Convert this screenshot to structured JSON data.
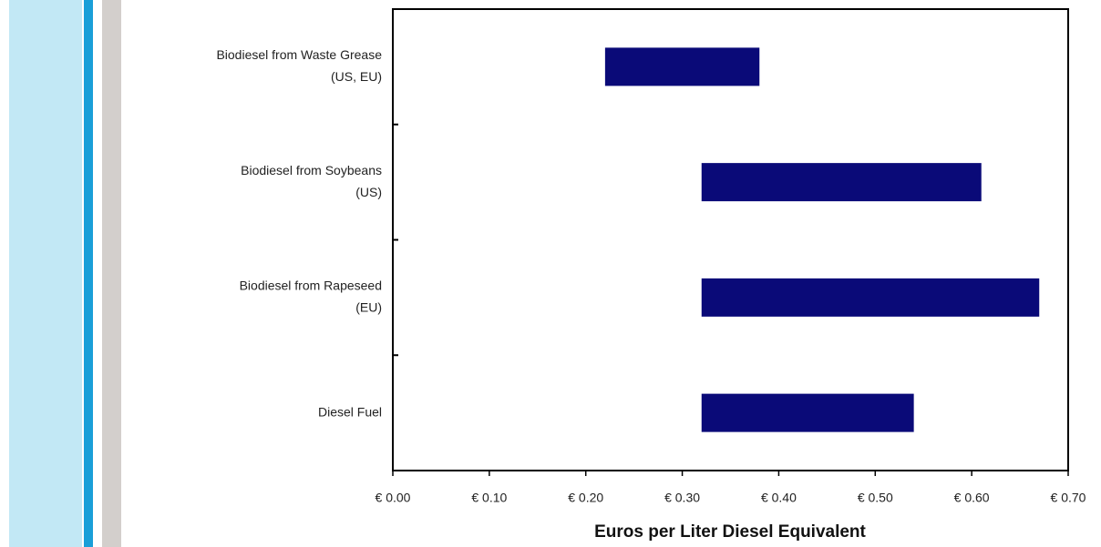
{
  "chart_data": {
    "type": "range_bar",
    "x_label": "Euros per Liter Diesel Equivalent",
    "categories": [
      [
        "Biodiesel from Waste Grease",
        "(US, EU)"
      ],
      [
        "Biodiesel from Soybeans",
        "(US)"
      ],
      [
        "Biodiesel from Rapeseed",
        "(EU)"
      ],
      [
        "Diesel Fuel"
      ]
    ],
    "values": [
      [
        0.22,
        0.38
      ],
      [
        0.32,
        0.61
      ],
      [
        0.32,
        0.67
      ],
      [
        0.32,
        0.54
      ]
    ],
    "color": "#0a0a78",
    "xlim": [
      0,
      0.7
    ],
    "xticks": [
      {
        "value": 0,
        "label": "€ 0.00"
      },
      {
        "value": 0.1,
        "label": "€ 0.10"
      },
      {
        "value": 0.2,
        "label": "€ 0.20"
      },
      {
        "value": 0.3,
        "label": "€ 0.30"
      },
      {
        "value": 0.4,
        "label": "€ 0.40"
      },
      {
        "value": 0.5,
        "label": "€ 0.50"
      },
      {
        "value": 0.6,
        "label": "€ 0.60"
      },
      {
        "value": 0.7,
        "label": "€ 0.70"
      }
    ]
  }
}
